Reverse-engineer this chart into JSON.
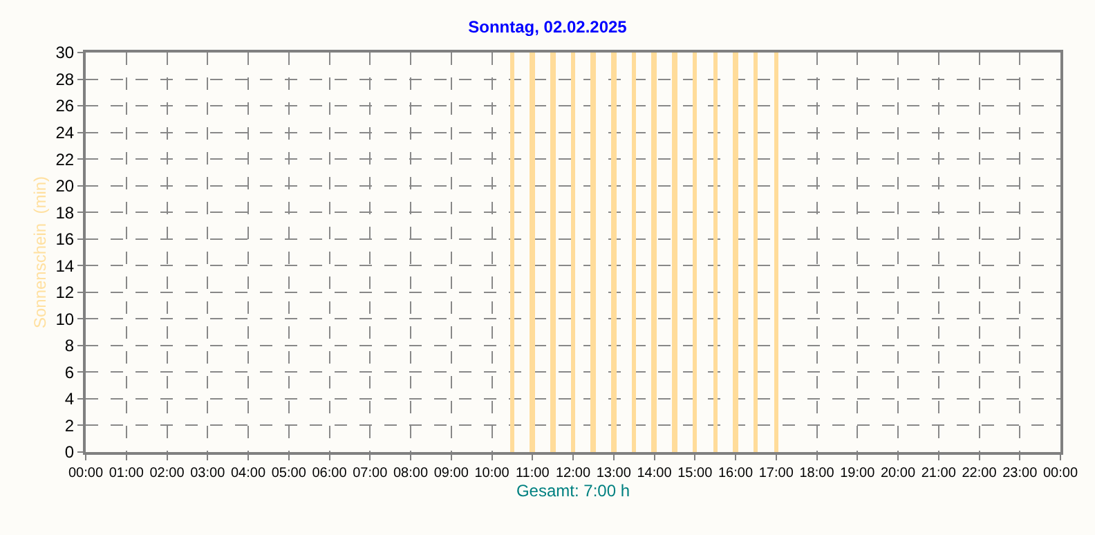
{
  "chart_data": {
    "type": "bar",
    "title": "Sonntag, 02.02.2025",
    "xlabel": "Gesamt: 7:00 h",
    "ylabel": "Sonnenschein  (min)",
    "x": [
      10.5,
      11,
      11.5,
      12,
      12.5,
      13,
      13.5,
      14,
      14.5,
      15,
      15.5,
      16,
      16.5,
      17
    ],
    "values": [
      30,
      30,
      30,
      30,
      30,
      30,
      30,
      30,
      30,
      30,
      30,
      30,
      30,
      30
    ],
    "color": "#ffdc9a",
    "xlim": [
      0,
      24
    ],
    "xticks": [
      {
        "value": 0,
        "label": "00:00"
      },
      {
        "value": 1,
        "label": "01:00"
      },
      {
        "value": 2,
        "label": "02:00"
      },
      {
        "value": 3,
        "label": "03:00"
      },
      {
        "value": 4,
        "label": "04:00"
      },
      {
        "value": 5,
        "label": "05:00"
      },
      {
        "value": 6,
        "label": "06:00"
      },
      {
        "value": 7,
        "label": "07:00"
      },
      {
        "value": 8,
        "label": "08:00"
      },
      {
        "value": 9,
        "label": "09:00"
      },
      {
        "value": 10,
        "label": "10:00"
      },
      {
        "value": 11,
        "label": "11:00"
      },
      {
        "value": 12,
        "label": "12:00"
      },
      {
        "value": 13,
        "label": "13:00"
      },
      {
        "value": 14,
        "label": "14:00"
      },
      {
        "value": 15,
        "label": "15:00"
      },
      {
        "value": 16,
        "label": "16:00"
      },
      {
        "value": 17,
        "label": "17:00"
      },
      {
        "value": 18,
        "label": "18:00"
      },
      {
        "value": 19,
        "label": "19:00"
      },
      {
        "value": 20,
        "label": "20:00"
      },
      {
        "value": 21,
        "label": "21:00"
      },
      {
        "value": 22,
        "label": "22:00"
      },
      {
        "value": 23,
        "label": "23:00"
      },
      {
        "value": 24,
        "label": "00:00"
      }
    ],
    "ylim": [
      0,
      30
    ],
    "yticks": [
      0,
      2,
      4,
      6,
      8,
      10,
      12,
      14,
      16,
      18,
      20,
      22,
      24,
      26,
      28,
      30
    ],
    "grid": true
  }
}
